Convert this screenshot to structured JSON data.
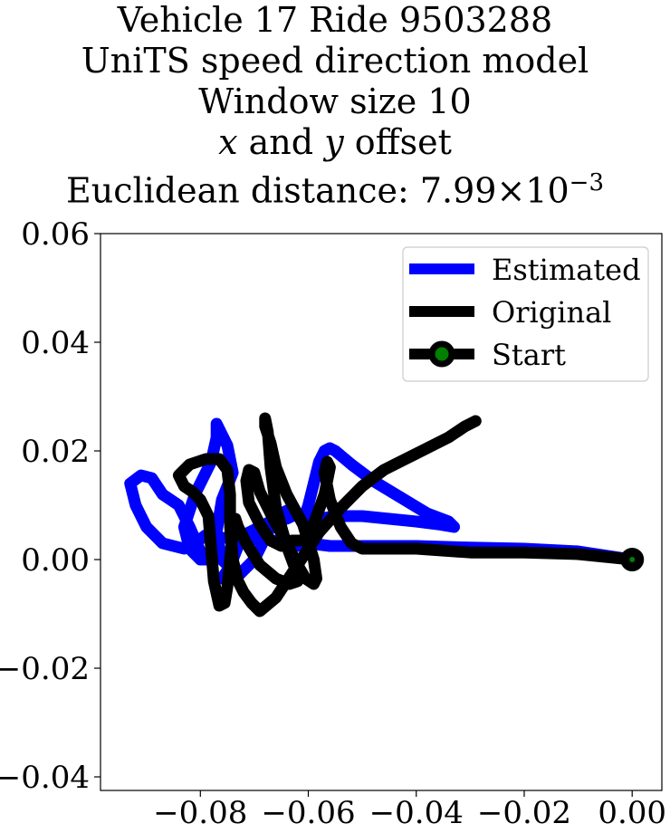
{
  "title": {
    "line1": "Vehicle 17 Ride 9503288",
    "line2": "UniTS speed direction model",
    "line3": "Window size 10",
    "line4_var_x": "x",
    "line4_and": " and ",
    "line4_var_y": "y",
    "line4_rest": " offset",
    "line5_prefix": "Euclidean distance: ",
    "line5_mantissa": "7.99",
    "line5_times": "×",
    "line5_base": "10",
    "line5_exp": "−3"
  },
  "chart_data": {
    "type": "line",
    "title": "Vehicle 17 Ride 9503288 UniTS speed direction model Window size 10 x and y offset Euclidean distance: 7.99×10^-3",
    "xlabel": "",
    "ylabel": "",
    "xlim": [
      -0.0985,
      0.0055
    ],
    "ylim": [
      -0.0425,
      0.06
    ],
    "xticks": [
      -0.08,
      -0.06,
      -0.04,
      -0.02,
      0.0
    ],
    "xtick_labels": [
      "−0.08",
      "−0.06",
      "−0.04",
      "−0.02",
      "0.00"
    ],
    "yticks": [
      -0.04,
      -0.02,
      0.0,
      0.02,
      0.04,
      0.06
    ],
    "ytick_labels": [
      "−0.04",
      "−0.02",
      "0.00",
      "0.02",
      "0.04",
      "0.06"
    ],
    "grid": false,
    "legend_position": "top-right",
    "series": [
      {
        "name": "Estimated",
        "color": "#0000ff",
        "x": [
          0.0,
          -0.01,
          -0.02,
          -0.03,
          -0.04,
          -0.05,
          -0.056,
          -0.06,
          -0.062,
          -0.065,
          -0.068,
          -0.072,
          -0.075,
          -0.077,
          -0.079,
          -0.081,
          -0.083,
          -0.087,
          -0.09,
          -0.092,
          -0.093,
          -0.091,
          -0.089,
          -0.087,
          -0.084,
          -0.082,
          -0.08,
          -0.079,
          -0.08,
          -0.082,
          -0.083,
          -0.081,
          -0.078,
          -0.077,
          -0.077,
          -0.075,
          -0.074,
          -0.076,
          -0.077,
          -0.076,
          -0.073,
          -0.07,
          -0.068,
          -0.066,
          -0.064,
          -0.062,
          -0.061,
          -0.06,
          -0.059,
          -0.058,
          -0.057,
          -0.056,
          -0.055,
          -0.052,
          -0.048,
          -0.043,
          -0.038,
          -0.034,
          -0.033,
          -0.036,
          -0.04,
          -0.045,
          -0.05,
          -0.055,
          -0.058,
          -0.06,
          -0.062,
          -0.063,
          -0.064,
          -0.066,
          -0.068,
          -0.07,
          -0.072,
          -0.073,
          -0.074,
          -0.075,
          -0.076
        ],
        "y": [
          0.0,
          0.0015,
          0.002,
          0.0022,
          0.0025,
          0.0025,
          0.0025,
          0.003,
          0.0025,
          0.003,
          0.004,
          0.0035,
          0.004,
          0.004,
          0.0045,
          0.003,
          0.002,
          0.003,
          0.006,
          0.01,
          0.014,
          0.0155,
          0.015,
          0.012,
          0.01,
          0.006,
          0.0015,
          0.0,
          0.0,
          0.002,
          0.006,
          0.012,
          0.018,
          0.0225,
          0.025,
          0.021,
          0.016,
          0.011,
          0.005,
          0.0,
          -0.003,
          0.0,
          0.004,
          0.008,
          0.009,
          0.008,
          0.007,
          0.01,
          0.014,
          0.018,
          0.02,
          0.0205,
          0.02,
          0.0175,
          0.0145,
          0.0115,
          0.0085,
          0.007,
          0.006,
          0.0065,
          0.007,
          0.0075,
          0.008,
          0.008,
          0.0075,
          0.008,
          0.0085,
          0.008,
          0.0075,
          0.0075,
          0.0065,
          0.0055,
          0.0045,
          0.0025,
          0.0,
          -0.002,
          -0.0035
        ]
      },
      {
        "name": "Original",
        "color": "#000000",
        "x": [
          0.0,
          -0.01,
          -0.02,
          -0.03,
          -0.04,
          -0.045,
          -0.048,
          -0.05,
          -0.052,
          -0.054,
          -0.056,
          -0.057,
          -0.0565,
          -0.056,
          -0.057,
          -0.059,
          -0.061,
          -0.063,
          -0.065,
          -0.067,
          -0.069,
          -0.071,
          -0.0715,
          -0.071,
          -0.07,
          -0.069,
          -0.0665,
          -0.064,
          -0.062,
          -0.0605,
          -0.059,
          -0.0585,
          -0.059,
          -0.061,
          -0.064,
          -0.066,
          -0.067,
          -0.068,
          -0.068,
          -0.0675,
          -0.067,
          -0.066,
          -0.064,
          -0.0625,
          -0.062,
          -0.0635,
          -0.066,
          -0.069,
          -0.0715,
          -0.073,
          -0.0735,
          -0.074,
          -0.0745,
          -0.075,
          -0.0755,
          -0.0765,
          -0.0775,
          -0.078,
          -0.0785,
          -0.08,
          -0.0815,
          -0.083,
          -0.084,
          -0.082,
          -0.079,
          -0.0765,
          -0.075,
          -0.0745,
          -0.0745,
          -0.074,
          -0.073,
          -0.072,
          -0.0705,
          -0.069,
          -0.066,
          -0.062,
          -0.058,
          -0.054,
          -0.05,
          -0.046,
          -0.042,
          -0.038,
          -0.034,
          -0.031,
          -0.029
        ],
        "y": [
          0.0,
          0.001,
          0.0013,
          0.0013,
          0.002,
          0.002,
          0.002,
          0.002,
          0.003,
          0.006,
          0.011,
          0.016,
          0.018,
          0.017,
          0.012,
          0.0065,
          0.0035,
          0.0035,
          0.0025,
          0.0035,
          0.0065,
          0.0105,
          0.0145,
          0.0165,
          0.016,
          0.0125,
          0.0075,
          0.003,
          -0.001,
          -0.0035,
          -0.0045,
          -0.0035,
          0.0,
          0.0065,
          0.012,
          0.017,
          0.0215,
          0.0245,
          0.026,
          0.0235,
          0.017,
          0.0095,
          0.0025,
          -0.0015,
          -0.004,
          -0.0045,
          -0.0035,
          -0.001,
          0.003,
          0.006,
          0.0075,
          0.005,
          0.0,
          -0.005,
          -0.008,
          -0.0085,
          -0.004,
          0.002,
          0.008,
          0.011,
          0.0125,
          0.0135,
          0.0155,
          0.0175,
          0.0185,
          0.0185,
          0.0165,
          0.012,
          0.006,
          0.0,
          -0.004,
          -0.006,
          -0.008,
          -0.0095,
          -0.007,
          -0.001,
          0.005,
          0.0095,
          0.0135,
          0.0165,
          0.0185,
          0.0205,
          0.0225,
          0.0245,
          0.0255
        ]
      },
      {
        "name": "Start",
        "color": "#000000",
        "marker_face": "#008000",
        "x": [
          0.0
        ],
        "y": [
          0.0
        ]
      }
    ]
  }
}
